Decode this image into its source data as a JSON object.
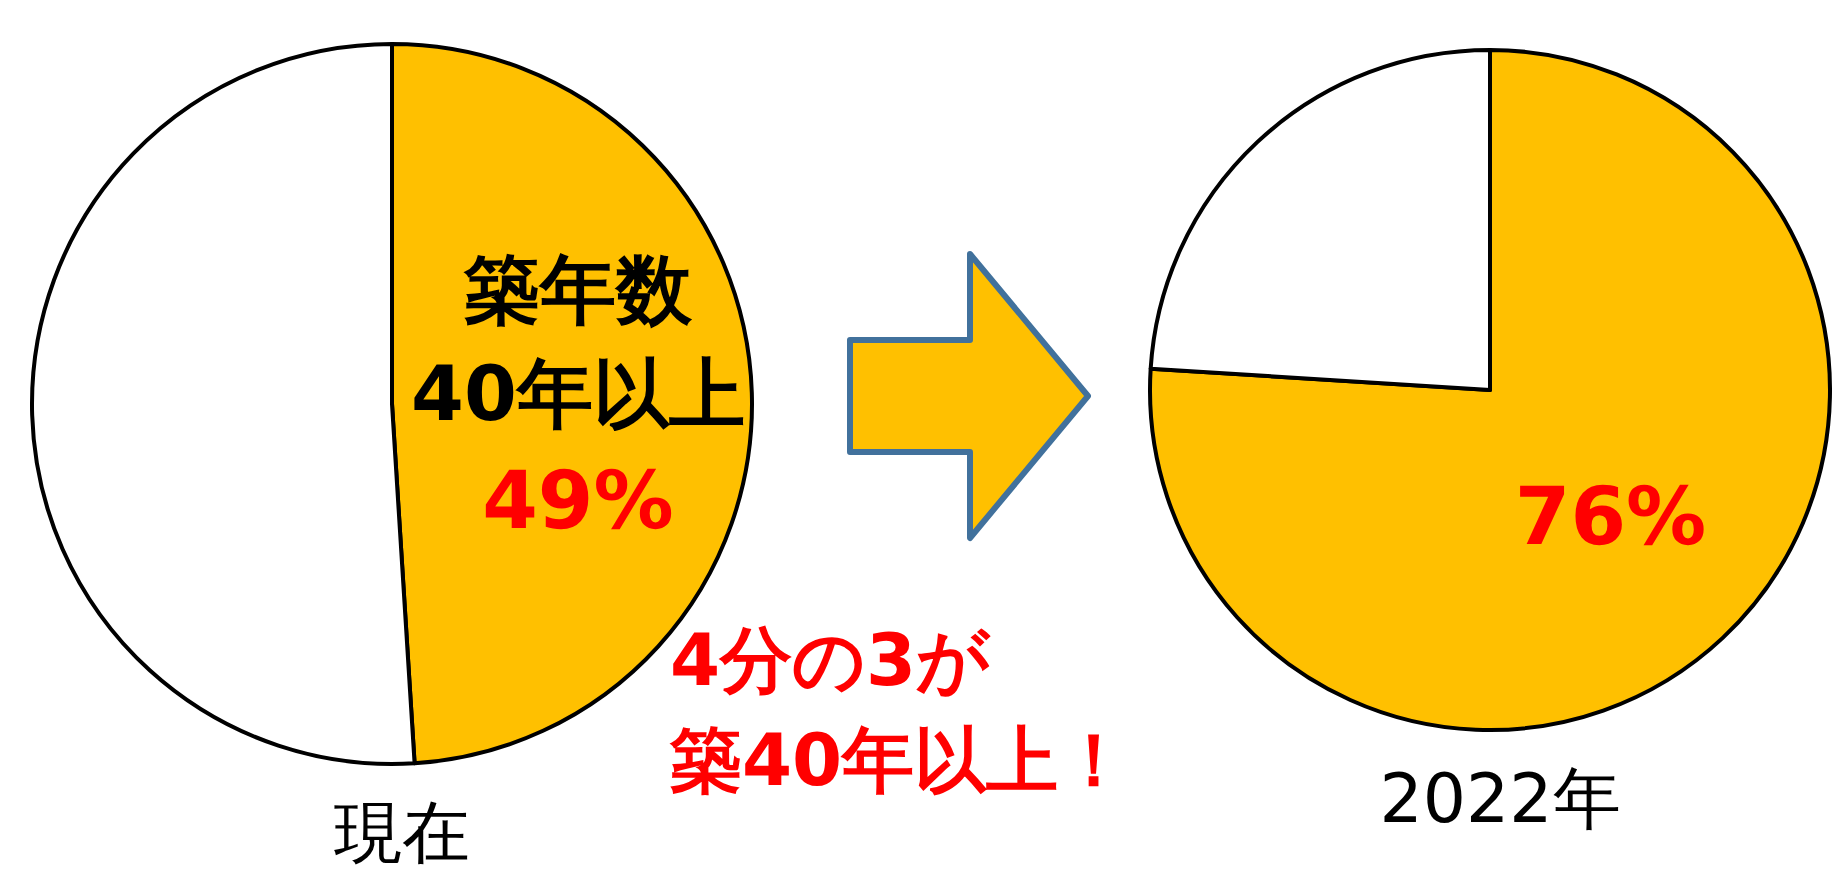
{
  "chart_data": [
    {
      "type": "pie",
      "title": "現在",
      "categories": [
        "築年数\n40年以上",
        null
      ],
      "values": [
        49,
        51
      ],
      "colors": [
        "#ffc000",
        "#ffffff"
      ],
      "value_labels": [
        "49%",
        null
      ]
    },
    {
      "type": "pie",
      "title": "2022年",
      "categories": [
        null,
        null
      ],
      "values": [
        76,
        24
      ],
      "colors": [
        "#ffc000",
        "#ffffff"
      ],
      "value_labels": [
        "76%",
        null
      ],
      "annotations": [
        "4分の3が",
        "築40年以上！"
      ]
    }
  ]
}
